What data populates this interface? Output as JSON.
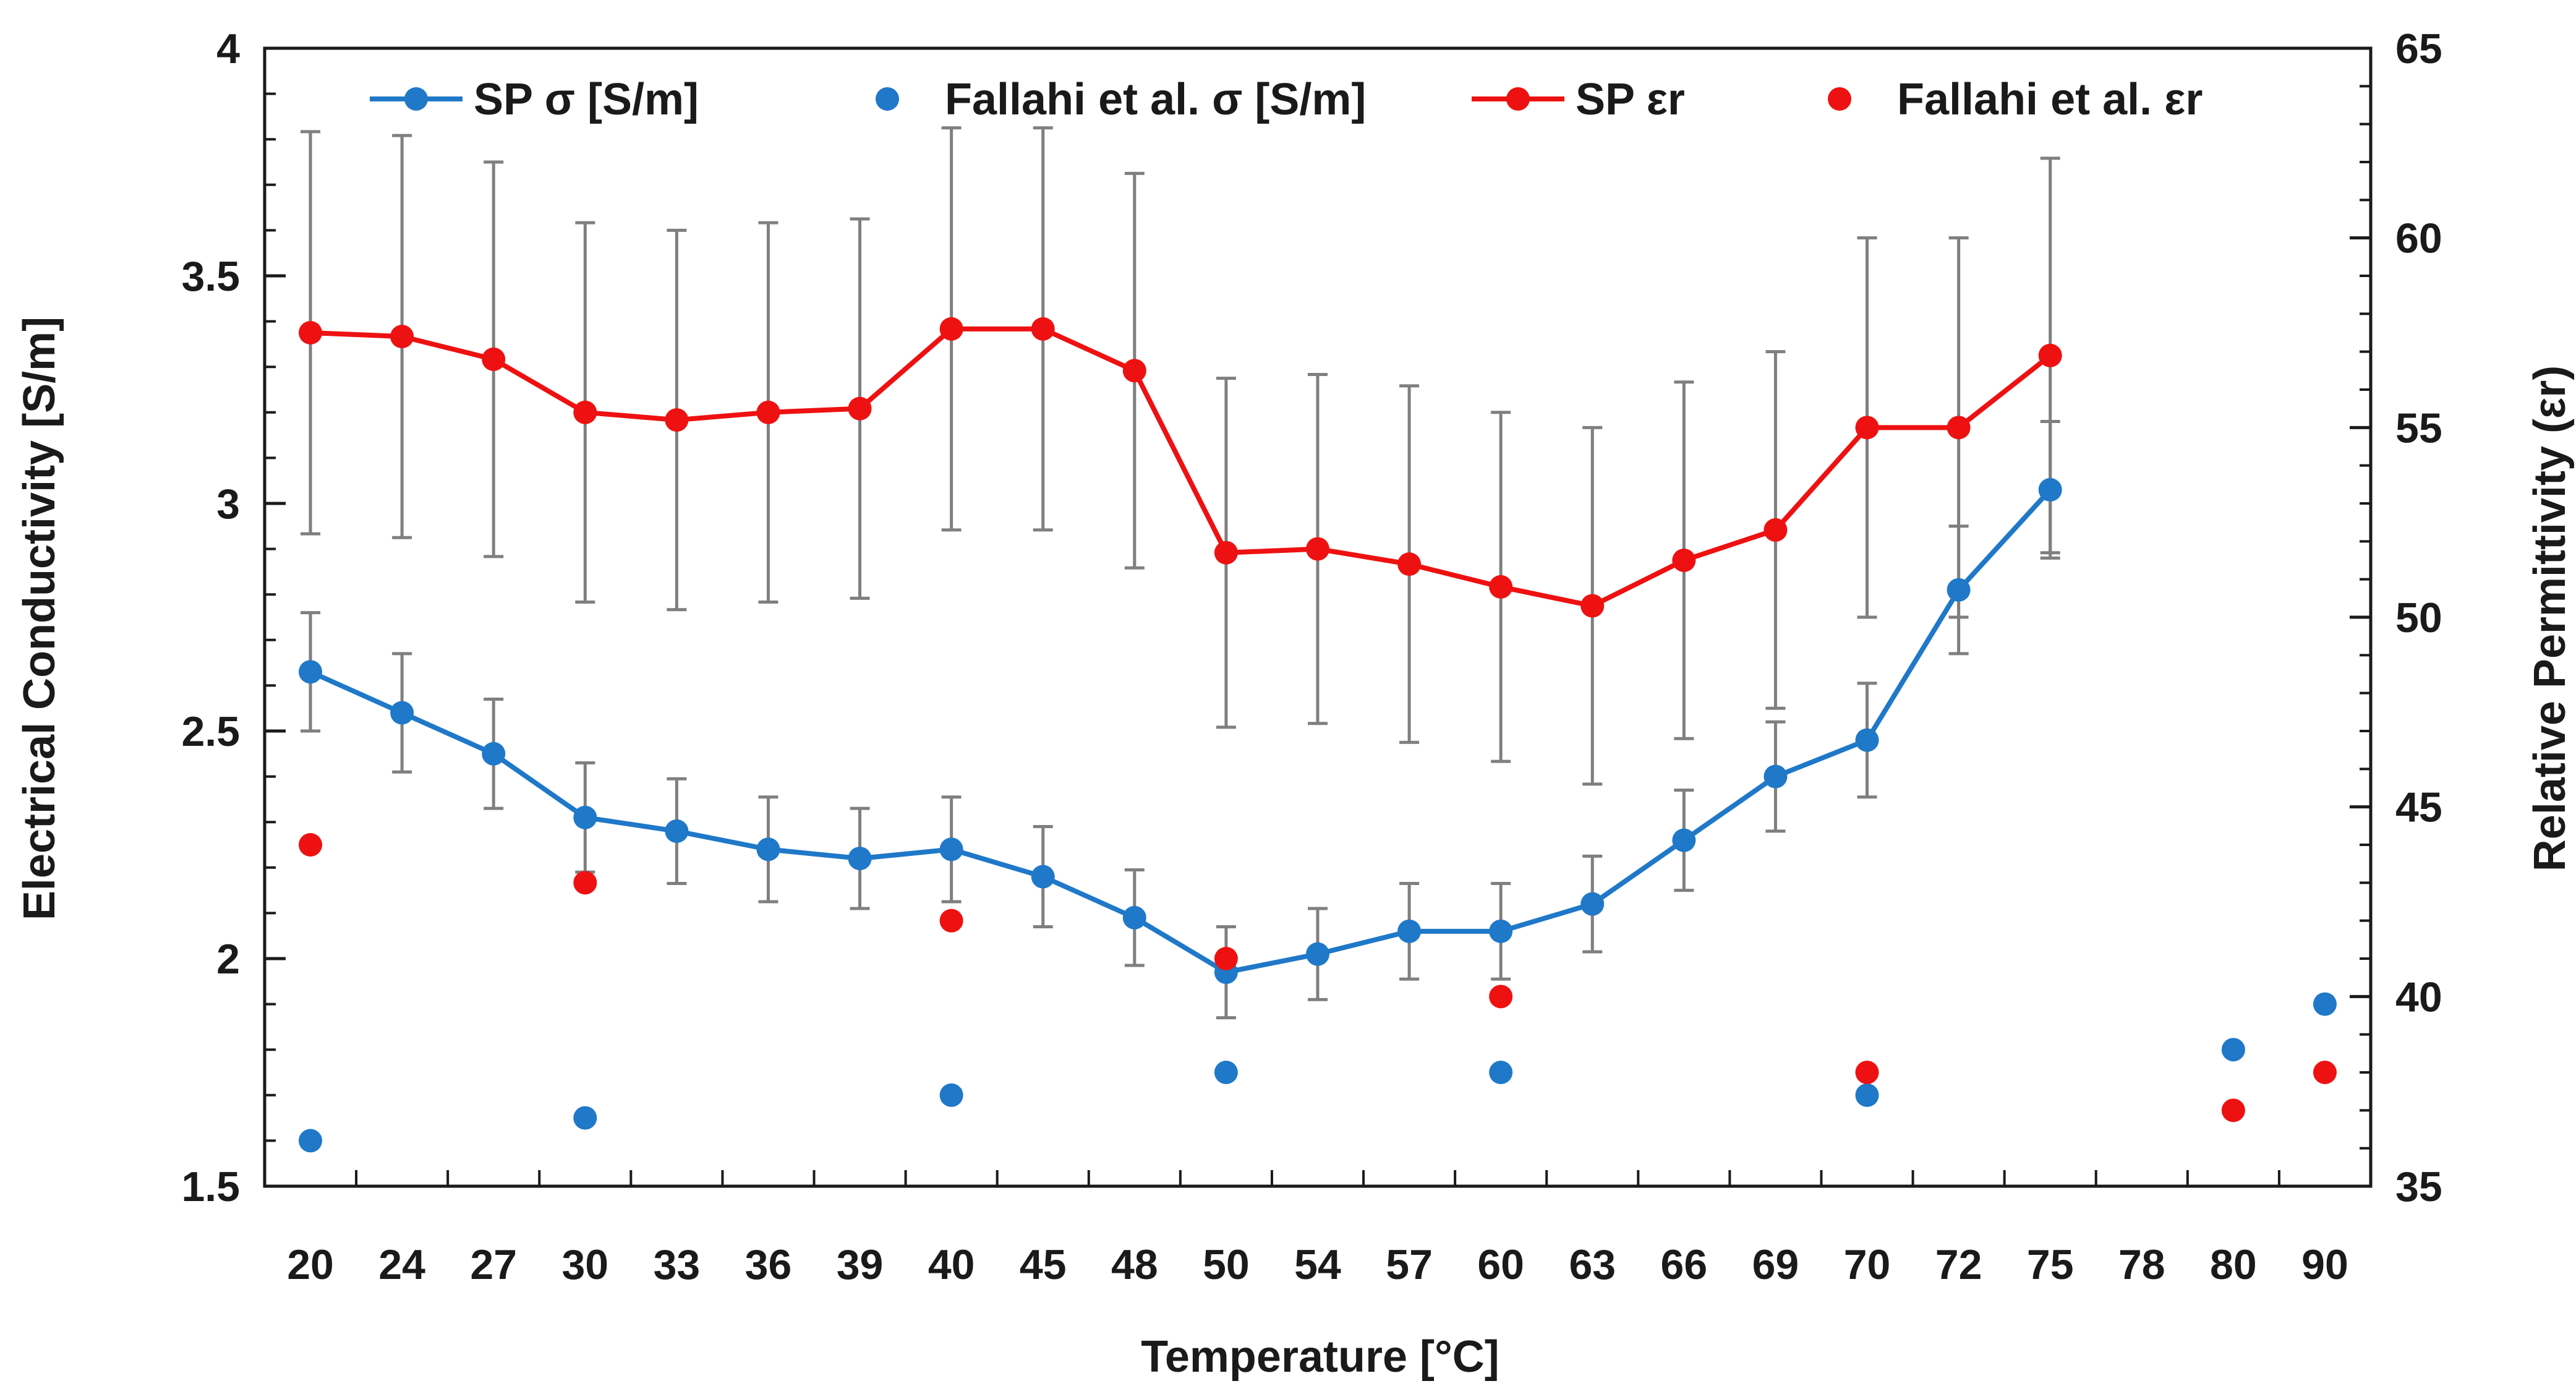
{
  "chart_data": {
    "type": "line",
    "title": "",
    "xlabel": "Temperature [°C]",
    "ylabel": "Electrical Conductivity [S/m]",
    "y2label": "Relative Permittivity (εr)",
    "categories": [
      "20",
      "24",
      "27",
      "30",
      "33",
      "36",
      "39",
      "40",
      "45",
      "48",
      "50",
      "54",
      "57",
      "60",
      "63",
      "66",
      "69",
      "70",
      "72",
      "75",
      "78",
      "80",
      "90"
    ],
    "ylim": [
      1.5,
      4
    ],
    "yticks": [
      "1.5",
      "2",
      "2.5",
      "3",
      "3.5",
      "4"
    ],
    "y2lim": [
      35,
      65
    ],
    "y2ticks": [
      "35",
      "40",
      "45",
      "50",
      "55",
      "60",
      "65"
    ],
    "legend_position": "top",
    "colors": {
      "blue": "#1f78c8",
      "red": "#ee1111",
      "errorbar": "#7f7f7f",
      "axis": "#1a1a1a"
    },
    "series": [
      {
        "name": "SP σ [S/m]",
        "axis": "left",
        "style": "line-marker",
        "color": "#1f78c8",
        "values": [
          2.63,
          2.54,
          2.45,
          2.31,
          2.28,
          2.24,
          2.22,
          2.24,
          2.18,
          2.09,
          1.97,
          2.01,
          2.06,
          2.06,
          2.12,
          2.26,
          2.4,
          2.48,
          2.81,
          3.03,
          null,
          null,
          null
        ],
        "errors": [
          0.13,
          0.13,
          0.12,
          0.12,
          0.115,
          0.115,
          0.11,
          0.115,
          0.11,
          0.105,
          0.1,
          0.1,
          0.105,
          0.105,
          0.105,
          0.11,
          0.12,
          0.125,
          0.14,
          0.15,
          null,
          null,
          null
        ]
      },
      {
        "name": "Fallahi et al. σ [S/m]",
        "axis": "left",
        "style": "marker",
        "color": "#1f78c8",
        "values": [
          1.6,
          null,
          null,
          1.65,
          null,
          null,
          null,
          1.7,
          null,
          null,
          1.75,
          null,
          null,
          1.75,
          null,
          null,
          null,
          1.7,
          null,
          null,
          null,
          1.8,
          1.9
        ]
      },
      {
        "name": "SP εr",
        "axis": "right",
        "style": "line-marker",
        "color": "#ee1111",
        "values": [
          57.5,
          57.4,
          56.8,
          55.4,
          55.2,
          55.4,
          55.5,
          57.6,
          57.6,
          56.5,
          51.7,
          51.8,
          51.4,
          50.8,
          50.3,
          51.5,
          52.3,
          55.0,
          55.0,
          56.9,
          null,
          null,
          null
        ],
        "errors": [
          5.3,
          5.3,
          5.2,
          5.0,
          5.0,
          5.0,
          5.0,
          5.3,
          5.3,
          5.2,
          4.6,
          4.6,
          4.7,
          4.6,
          4.7,
          4.7,
          4.7,
          5.0,
          5.0,
          5.2,
          null,
          null,
          null
        ]
      },
      {
        "name": "Fallahi et al. εr",
        "axis": "right",
        "style": "marker",
        "color": "#ee1111",
        "values": [
          44,
          null,
          null,
          43,
          null,
          null,
          null,
          42,
          null,
          null,
          41,
          null,
          null,
          40,
          null,
          null,
          null,
          38,
          null,
          null,
          null,
          37,
          38
        ]
      }
    ]
  }
}
